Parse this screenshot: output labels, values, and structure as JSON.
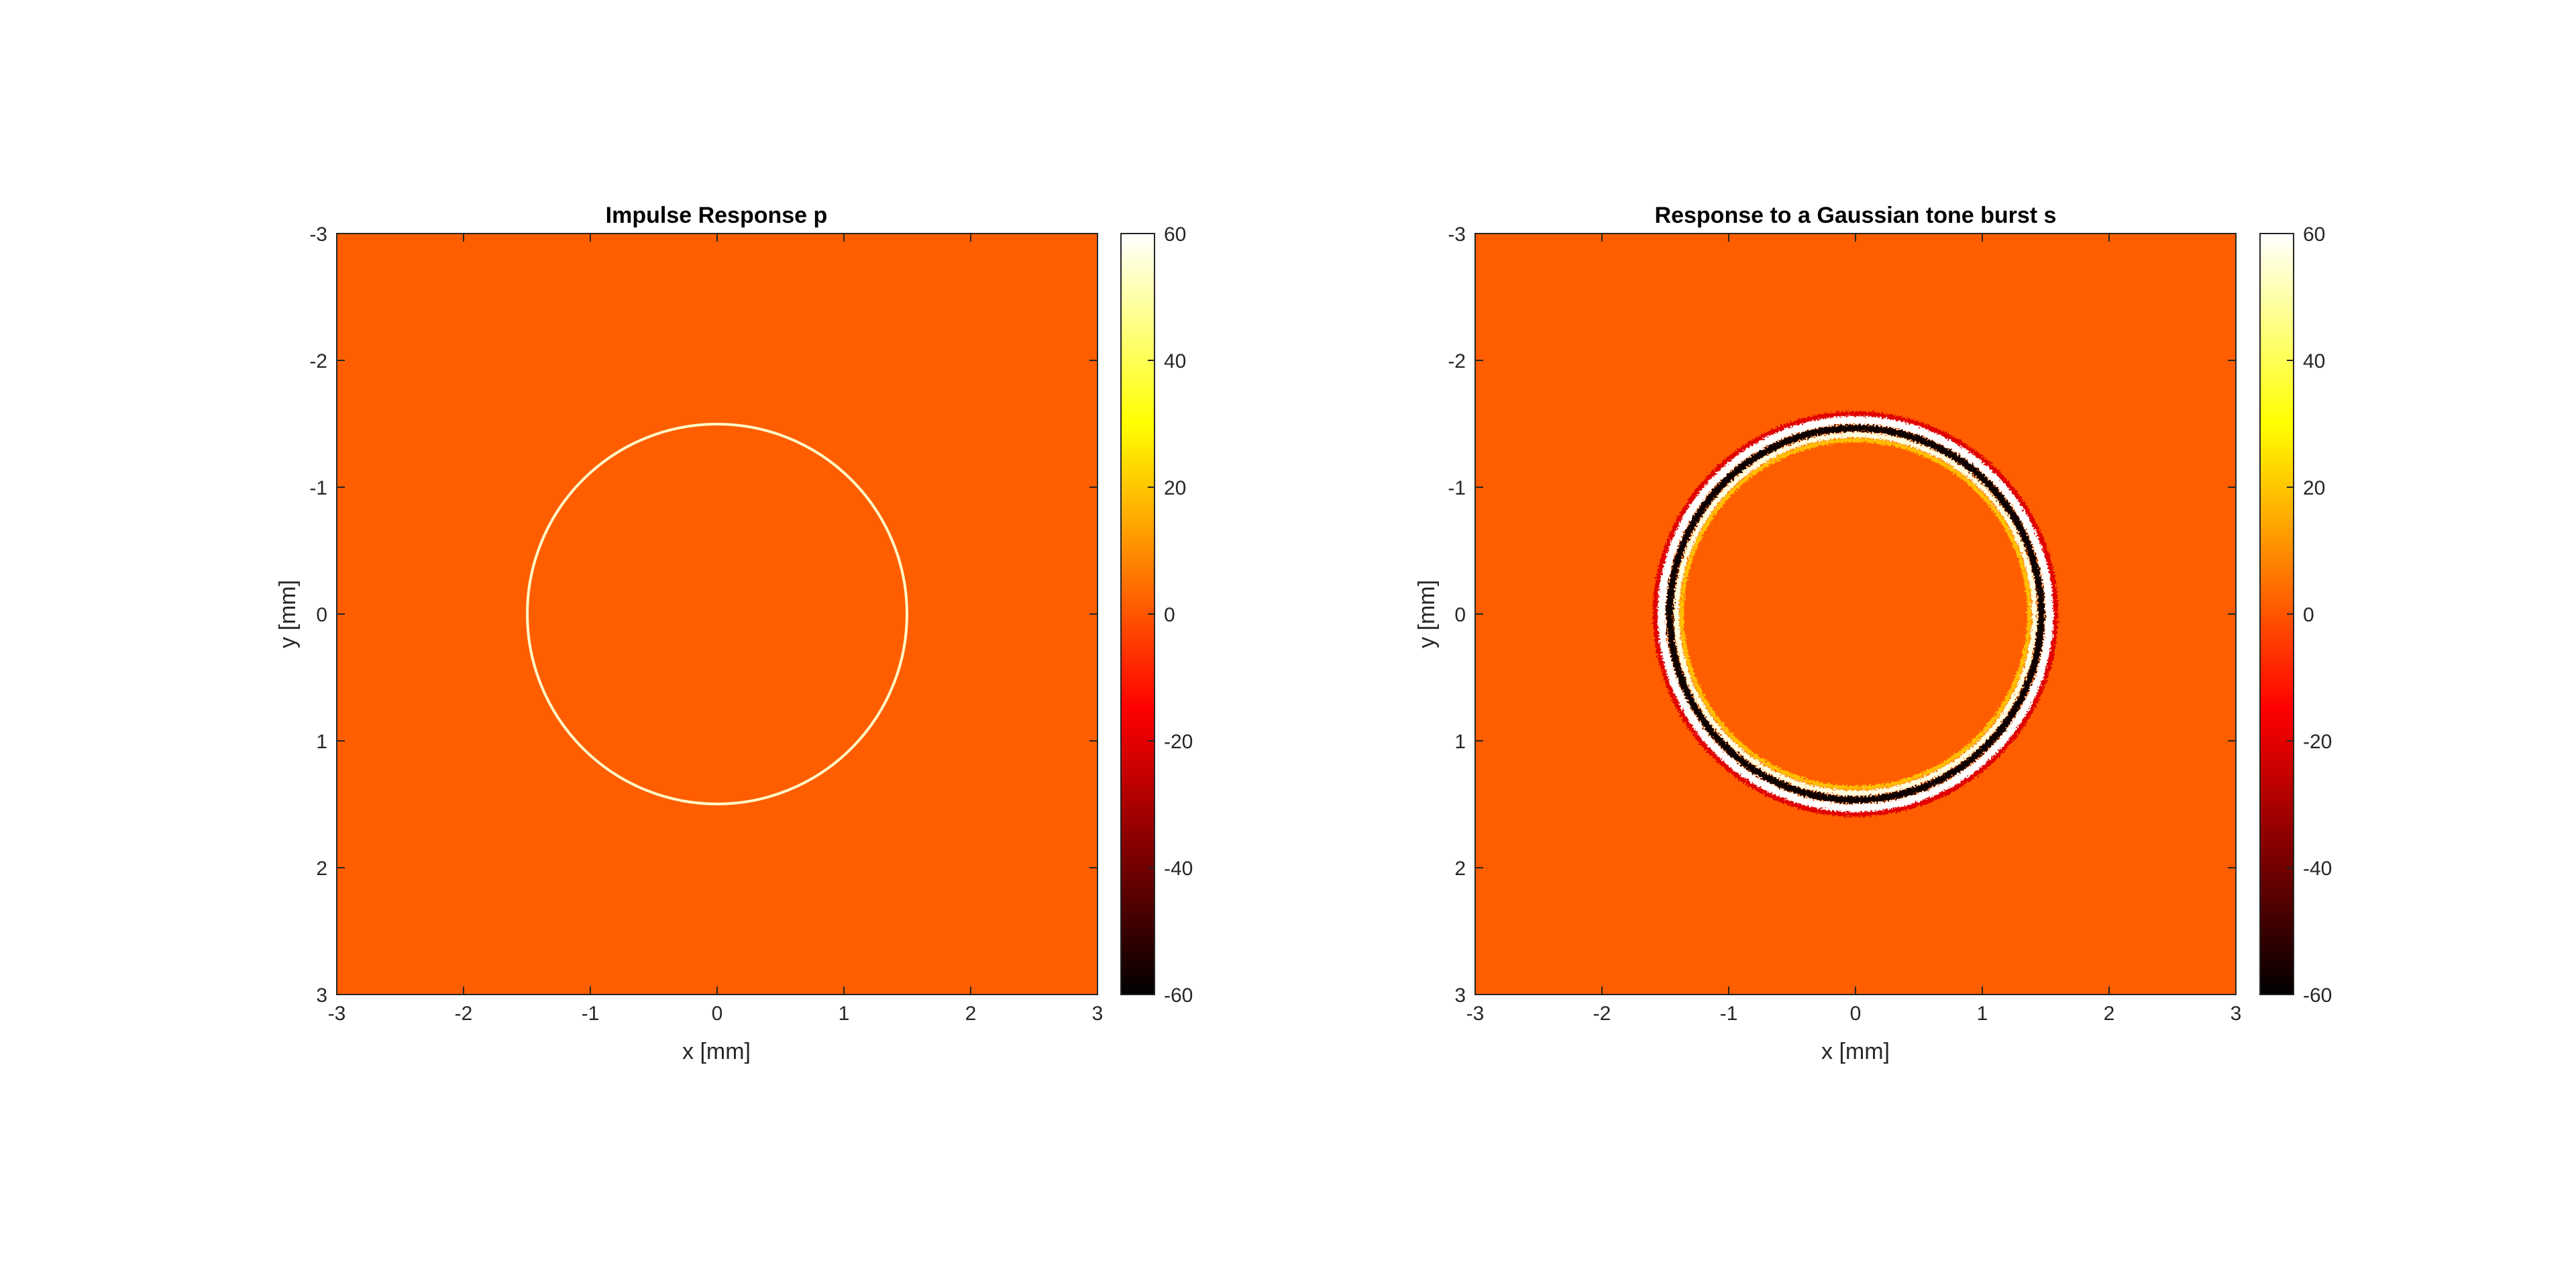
{
  "chart_data": [
    {
      "type": "heatmap",
      "title": "Impulse Response p",
      "xlabel": "x [mm]",
      "ylabel": "y [mm]",
      "xlim": [
        -3,
        3
      ],
      "ylim": [
        -3,
        3
      ],
      "y_direction": "reverse",
      "xticks": [
        -3,
        -2,
        -1,
        0,
        1,
        2,
        3
      ],
      "yticks": [
        -3,
        -2,
        -1,
        0,
        1,
        2,
        3
      ],
      "colormap": "hot",
      "background_value": 0,
      "feature": {
        "shape": "ring",
        "center": [
          0,
          0
        ],
        "radius": 1.5,
        "peak_value": 60
      },
      "colorbar": {
        "min": -60,
        "max": 60,
        "ticks": [
          60,
          40,
          20,
          0,
          -20,
          -40,
          -60
        ]
      }
    },
    {
      "type": "heatmap",
      "title": "Response to a Gaussian tone burst s",
      "xlabel": "x [mm]",
      "ylabel": "y [mm]",
      "xlim": [
        -3,
        3
      ],
      "ylim": [
        -3,
        3
      ],
      "y_direction": "reverse",
      "xticks": [
        -3,
        -2,
        -1,
        0,
        1,
        2,
        3
      ],
      "yticks": [
        -3,
        -2,
        -1,
        0,
        1,
        2,
        3
      ],
      "colormap": "hot",
      "background_value": 0,
      "feature": {
        "shape": "ring",
        "center": [
          0,
          0
        ],
        "radius": 1.5,
        "bands": [
          {
            "radius": 1.58,
            "value": -20
          },
          {
            "radius": 1.53,
            "value": 60
          },
          {
            "radius": 1.47,
            "value": -60
          },
          {
            "radius": 1.42,
            "value": 60
          },
          {
            "radius": 1.38,
            "value": 30
          }
        ]
      },
      "colorbar": {
        "min": -60,
        "max": 60,
        "ticks": [
          60,
          40,
          20,
          0,
          -20,
          -40,
          -60
        ]
      }
    }
  ]
}
